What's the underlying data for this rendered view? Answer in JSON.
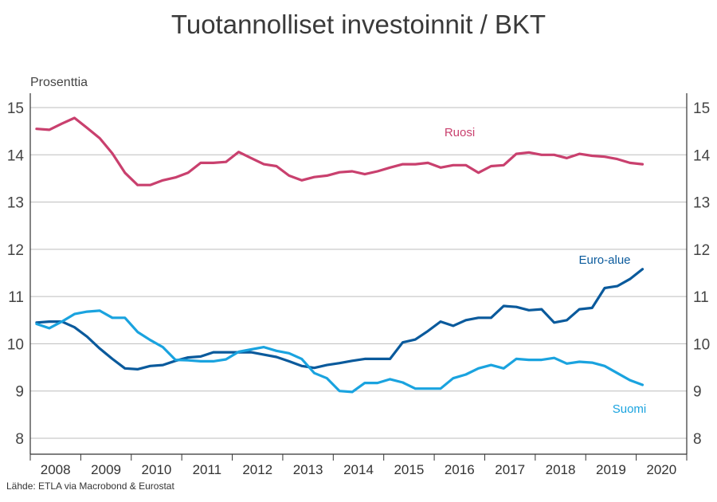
{
  "title": "Tuotannolliset investoinnit / BKT",
  "unit_label": "Prosenttia",
  "source": "Lähde: ETLA via Macrobond & Eurostat",
  "chart_data": {
    "type": "line",
    "title": "Tuotannolliset investoinnit / BKT",
    "ylabel": "Prosenttia",
    "ylim": [
      8,
      15
    ],
    "yticks": [
      8,
      9,
      10,
      11,
      12,
      13,
      14,
      15
    ],
    "x_labels": [
      "2008",
      "2009",
      "2010",
      "2011",
      "2012",
      "2013",
      "2014",
      "2015",
      "2016",
      "2017",
      "2018",
      "2019",
      "2020"
    ],
    "x_range": [
      2008,
      2021
    ],
    "grid": true,
    "series": [
      {
        "name": "Ruosi",
        "color": "#c9406e",
        "x": [
          2008.125,
          2008.375,
          2008.625,
          2008.875,
          2009.125,
          2009.375,
          2009.625,
          2009.875,
          2010.125,
          2010.375,
          2010.625,
          2010.875,
          2011.125,
          2011.375,
          2011.625,
          2011.875,
          2012.125,
          2012.375,
          2012.625,
          2012.875,
          2013.125,
          2013.375,
          2013.625,
          2013.875,
          2014.125,
          2014.375,
          2014.625,
          2014.875,
          2015.125,
          2015.375,
          2015.625,
          2015.875,
          2016.125,
          2016.375,
          2016.625,
          2016.875,
          2017.125,
          2017.375,
          2017.625,
          2017.875,
          2018.125,
          2018.375,
          2018.625,
          2018.875,
          2019.125,
          2019.375,
          2019.625,
          2019.875,
          2020.125
        ],
        "y": [
          14.55,
          14.53,
          14.66,
          14.78,
          14.57,
          14.35,
          14.03,
          13.62,
          13.36,
          13.36,
          13.46,
          13.52,
          13.62,
          13.83,
          13.83,
          13.85,
          14.06,
          13.93,
          13.8,
          13.76,
          13.56,
          13.46,
          13.53,
          13.56,
          13.63,
          13.65,
          13.59,
          13.65,
          13.73,
          13.8,
          13.8,
          13.83,
          13.73,
          13.78,
          13.78,
          13.62,
          13.76,
          13.78,
          14.02,
          14.05,
          14.0,
          14.0,
          13.93,
          14.02,
          13.98,
          13.96,
          13.91,
          13.83,
          13.8
        ]
      },
      {
        "name": "Euro-alue",
        "color": "#0a5a9c",
        "x": [
          2008.125,
          2008.375,
          2008.625,
          2008.875,
          2009.125,
          2009.375,
          2009.625,
          2009.875,
          2010.125,
          2010.375,
          2010.625,
          2010.875,
          2011.125,
          2011.375,
          2011.625,
          2011.875,
          2012.125,
          2012.375,
          2012.625,
          2012.875,
          2013.125,
          2013.375,
          2013.625,
          2013.875,
          2014.125,
          2014.375,
          2014.625,
          2014.875,
          2015.125,
          2015.375,
          2015.625,
          2015.875,
          2016.125,
          2016.375,
          2016.625,
          2016.875,
          2017.125,
          2017.375,
          2017.625,
          2017.875,
          2018.125,
          2018.375,
          2018.625,
          2018.875,
          2019.125,
          2019.375,
          2019.625,
          2019.875,
          2020.125
        ],
        "y": [
          10.45,
          10.47,
          10.47,
          10.35,
          10.15,
          9.9,
          9.68,
          9.48,
          9.46,
          9.53,
          9.55,
          9.64,
          9.71,
          9.73,
          9.82,
          9.82,
          9.82,
          9.82,
          9.77,
          9.72,
          9.63,
          9.53,
          9.49,
          9.55,
          9.59,
          9.64,
          9.68,
          9.68,
          9.68,
          10.03,
          10.09,
          10.27,
          10.47,
          10.38,
          10.5,
          10.55,
          10.55,
          10.8,
          10.78,
          10.71,
          10.73,
          10.45,
          10.5,
          10.73,
          10.76,
          11.18,
          11.22,
          11.37,
          11.58
        ]
      },
      {
        "name": "Suomi",
        "color": "#1aa3df",
        "x": [
          2008.125,
          2008.375,
          2008.625,
          2008.875,
          2009.125,
          2009.375,
          2009.625,
          2009.875,
          2010.125,
          2010.375,
          2010.625,
          2010.875,
          2011.125,
          2011.375,
          2011.625,
          2011.875,
          2012.125,
          2012.375,
          2012.625,
          2012.875,
          2013.125,
          2013.375,
          2013.625,
          2013.875,
          2014.125,
          2014.375,
          2014.625,
          2014.875,
          2015.125,
          2015.375,
          2015.625,
          2015.875,
          2016.125,
          2016.375,
          2016.625,
          2016.875,
          2017.125,
          2017.375,
          2017.625,
          2017.875,
          2018.125,
          2018.375,
          2018.625,
          2018.875,
          2019.125,
          2019.375,
          2019.625,
          2019.875,
          2020.125
        ],
        "y": [
          10.42,
          10.33,
          10.47,
          10.63,
          10.68,
          10.7,
          10.55,
          10.55,
          10.25,
          10.08,
          9.93,
          9.66,
          9.65,
          9.63,
          9.63,
          9.67,
          9.83,
          9.88,
          9.93,
          9.85,
          9.8,
          9.68,
          9.38,
          9.27,
          9.0,
          8.98,
          9.17,
          9.17,
          9.25,
          9.18,
          9.05,
          9.05,
          9.05,
          9.27,
          9.35,
          9.48,
          9.55,
          9.48,
          9.68,
          9.66,
          9.66,
          9.7,
          9.58,
          9.62,
          9.6,
          9.53,
          9.38,
          9.23,
          9.13
        ]
      }
    ],
    "labels": [
      {
        "series": "Ruosi",
        "text": "Ruosi"
      },
      {
        "series": "Euro-alue",
        "text": "Euro-alue"
      },
      {
        "series": "Suomi",
        "text": "Suomi"
      }
    ]
  }
}
